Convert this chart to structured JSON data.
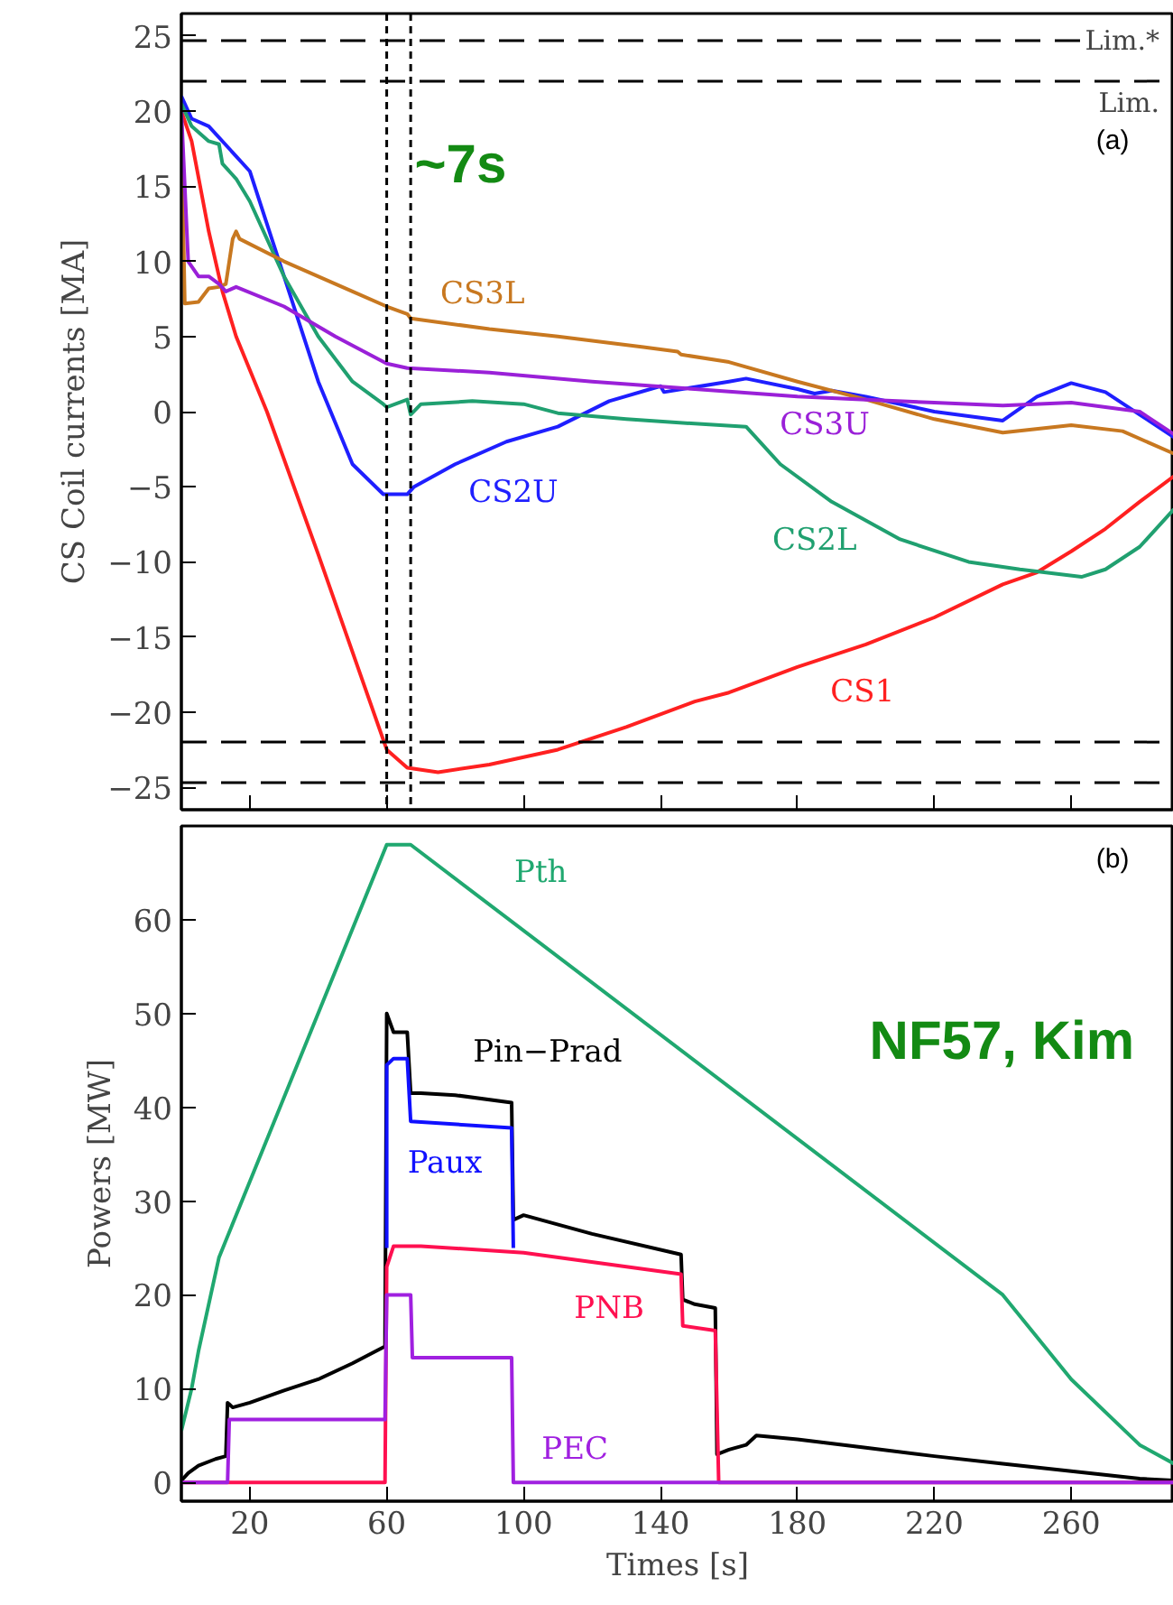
{
  "chart_data": [
    {
      "type": "line",
      "ylabel": "CS Coil currents [MA]",
      "xlim": [
        0,
        290
      ],
      "ylim": [
        -26.5,
        26.5
      ],
      "yticks": [
        -25,
        -20,
        -15,
        -10,
        -5,
        0,
        5,
        10,
        15,
        20,
        25
      ],
      "xticks": [
        {
          "value": 20,
          "label": null
        },
        {
          "value": 60,
          "label": null
        },
        {
          "value": 100,
          "label": null
        },
        {
          "value": 140,
          "label": null
        },
        {
          "value": 180,
          "label": null
        },
        {
          "value": 220,
          "label": null
        },
        {
          "value": 260,
          "label": null
        }
      ],
      "tick_labels": "y",
      "grid": false,
      "series": [
        {
          "name": "CS1",
          "color": "#ff2020",
          "x": [
            0,
            3,
            8,
            12,
            16,
            25,
            40,
            60,
            66,
            75,
            90,
            110,
            130,
            150,
            160,
            180,
            200,
            220,
            240,
            250,
            260,
            270,
            280,
            290
          ],
          "values": [
            20,
            18,
            12,
            8,
            5,
            0,
            -9.5,
            -22.5,
            -23.7,
            -24,
            -23.5,
            -22.5,
            -21,
            -19.3,
            -18.7,
            -17,
            -15.5,
            -13.7,
            -11.5,
            -10.7,
            -9.3,
            -7.8,
            -6,
            -4.3
          ]
        },
        {
          "name": "CS2U",
          "color": "#1f1fff",
          "x": [
            0,
            3,
            8,
            14,
            16,
            20,
            30,
            40,
            50,
            59,
            66,
            68,
            80,
            95,
            110,
            125,
            140,
            141,
            160,
            165,
            180,
            185,
            190,
            200,
            220,
            240,
            250,
            260,
            270,
            280,
            290
          ],
          "values": [
            21,
            19.5,
            19,
            17.5,
            17,
            16,
            9,
            2,
            -3.5,
            -5.5,
            -5.5,
            -5,
            -3.5,
            -2,
            -1,
            0.7,
            1.7,
            1.3,
            2,
            2.2,
            1.5,
            1.2,
            1.4,
            1,
            0,
            -0.6,
            1,
            1.9,
            1.3,
            -0.2,
            -1.7
          ]
        },
        {
          "name": "CS2L",
          "color": "#20a070",
          "x": [
            0,
            3,
            8,
            11,
            12,
            16,
            20,
            30,
            40,
            50,
            59,
            60,
            66,
            67,
            70,
            85,
            100,
            110,
            130,
            150,
            165,
            175,
            190,
            210,
            230,
            245,
            263,
            270,
            280,
            290
          ],
          "values": [
            20.5,
            19,
            18,
            17.8,
            16.5,
            15.5,
            14,
            9,
            5,
            2,
            0.5,
            0.3,
            0.8,
            -0.2,
            0.5,
            0.7,
            0.5,
            -0.1,
            -0.5,
            -0.8,
            -1,
            -3.5,
            -6,
            -8.5,
            -10,
            -10.5,
            -11,
            -10.5,
            -9,
            -6.5
          ]
        },
        {
          "name": "CS3L",
          "color": "#c87820",
          "x": [
            0,
            1,
            5,
            8,
            11,
            13,
            15,
            16,
            17,
            30,
            50,
            60,
            66,
            67,
            90,
            110,
            135,
            145,
            146,
            160,
            180,
            200,
            220,
            240,
            260,
            275,
            290
          ],
          "values": [
            19,
            7.2,
            7.3,
            8.2,
            8.3,
            8.5,
            11.5,
            12,
            11.5,
            10,
            8,
            7,
            6.5,
            6.2,
            5.5,
            5,
            4.3,
            4,
            3.8,
            3.3,
            2,
            0.8,
            -0.5,
            -1.4,
            -0.9,
            -1.3,
            -2.8
          ]
        },
        {
          "name": "CS3U",
          "color": "#9a20d8",
          "x": [
            0,
            2,
            5,
            8,
            11,
            13,
            16,
            30,
            45,
            60,
            66,
            90,
            120,
            150,
            180,
            200,
            220,
            240,
            260,
            280,
            290
          ],
          "values": [
            20,
            10,
            9,
            9,
            8.5,
            8,
            8.3,
            7,
            5,
            3.2,
            2.9,
            2.6,
            2,
            1.5,
            1,
            0.8,
            0.6,
            0.4,
            0.6,
            0,
            -1.5
          ]
        }
      ],
      "ref_lines": [
        {
          "axis": "y",
          "value": 24.7,
          "label": "Lim.*",
          "line_style": "dashed",
          "color": "#000000"
        },
        {
          "axis": "y",
          "value": 22,
          "label": "Lim.",
          "line_style": "dashed",
          "color": "#000000"
        },
        {
          "axis": "y",
          "value": -22,
          "line_style": "dashed",
          "color": "#000000"
        },
        {
          "axis": "y",
          "value": -24.7,
          "line_style": "dashed",
          "color": "#000000"
        },
        {
          "axis": "x",
          "value": 60,
          "line_style": "dotted",
          "color": "#000000"
        },
        {
          "axis": "x",
          "value": 67,
          "line_style": "dotted",
          "color": "#000000"
        }
      ],
      "annotations": [
        "~7s",
        "(a)"
      ]
    },
    {
      "type": "line",
      "xlabel": "Times [s]",
      "ylabel": "Powers [MW]",
      "xlim": [
        0,
        290
      ],
      "ylim": [
        -2,
        70
      ],
      "xticks": [
        20,
        60,
        100,
        140,
        180,
        220,
        260
      ],
      "yticks": [
        0,
        10,
        20,
        30,
        40,
        50,
        60
      ],
      "grid": false,
      "series": [
        {
          "name": "Pth",
          "color": "#20a870",
          "x": [
            0,
            3,
            5,
            11,
            60,
            67,
            240,
            260,
            280,
            290
          ],
          "values": [
            5.5,
            10,
            14,
            24,
            68,
            68,
            20,
            11,
            4,
            2
          ]
        },
        {
          "name": "Pin−Prad",
          "color": "#000000",
          "x": [
            0,
            2,
            5,
            10,
            13,
            13.5,
            15,
            20,
            30,
            40,
            50,
            59.5,
            60,
            62,
            66,
            67,
            70,
            80,
            96.5,
            97,
            100,
            120,
            146,
            146.5,
            150,
            156,
            156.5,
            160,
            165,
            168,
            180,
            200,
            220,
            240,
            260,
            280,
            290
          ],
          "values": [
            0.2,
            1,
            1.8,
            2.5,
            2.8,
            8.5,
            8,
            8.5,
            9.8,
            11,
            12.7,
            14.5,
            50,
            48,
            48,
            41.5,
            41.5,
            41.3,
            40.5,
            28,
            28.5,
            26.5,
            24.3,
            19.5,
            19,
            18.6,
            3,
            3.5,
            4,
            5,
            4.6,
            3.7,
            2.8,
            2,
            1.2,
            0.4,
            0.2
          ]
        },
        {
          "name": "Paux",
          "color": "#1010ff",
          "x": [
            60,
            60,
            62,
            66,
            67,
            96.5,
            97
          ],
          "values": [
            25,
            44.5,
            45.2,
            45.2,
            38.5,
            37.8,
            25
          ]
        },
        {
          "name": "PNB",
          "color": "#ff1050",
          "x": [
            0,
            59.5,
            60,
            62,
            70,
            100,
            146,
            146.5,
            156,
            157,
            290
          ],
          "values": [
            0,
            0,
            23,
            25.2,
            25.2,
            24.5,
            22.2,
            16.7,
            16.2,
            0,
            0
          ]
        },
        {
          "name": "PEC",
          "color": "#a020e0",
          "x": [
            0,
            13.5,
            14,
            59.5,
            60,
            67,
            67.5,
            96.5,
            97,
            290
          ],
          "values": [
            0,
            0,
            6.7,
            6.7,
            20,
            20,
            13.3,
            13.3,
            0,
            0
          ]
        }
      ],
      "annotations": [
        "(b)",
        "NF57, Kim"
      ]
    }
  ]
}
